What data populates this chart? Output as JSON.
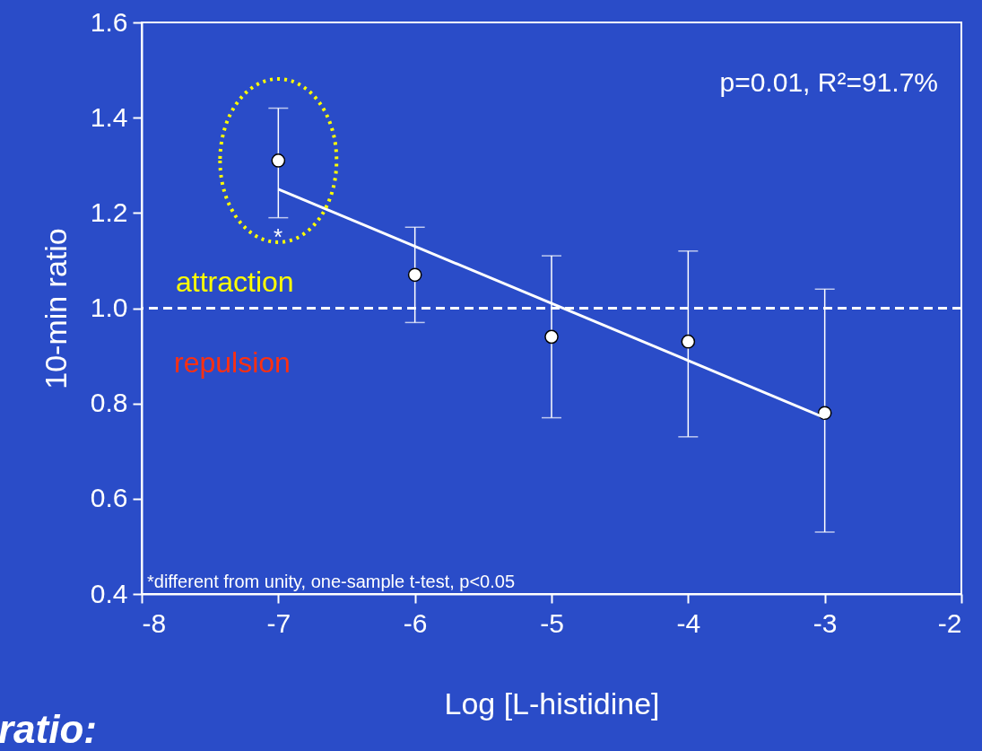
{
  "chart_data": {
    "type": "scatter",
    "xlabel": "Log [L-histidine]",
    "ylabel": "10-min ratio",
    "xlim": [
      -8,
      -2
    ],
    "xticks": [
      -8,
      -7,
      -6,
      -5,
      -4,
      -3,
      -2
    ],
    "ylim": [
      0.4,
      1.6
    ],
    "yticks": [
      {
        "value": 0.4,
        "label": "0.4"
      },
      {
        "value": 0.6,
        "label": "0.6"
      },
      {
        "value": 0.8,
        "label": "0.8"
      },
      {
        "value": 1.0,
        "label": "1.0"
      },
      {
        "value": 1.2,
        "label": "1.2"
      },
      {
        "value": 1.4,
        "label": "1.4"
      },
      {
        "value": 1.6,
        "label": "1.6"
      }
    ],
    "grid": false,
    "legend": false,
    "series": [
      {
        "color": "#ffffff",
        "marker": "circle",
        "x": [
          -7,
          -6,
          -5,
          -4,
          -3
        ],
        "values": [
          1.31,
          1.07,
          0.94,
          0.93,
          0.78
        ],
        "errors": [
          [
            1.19,
            1.42
          ],
          [
            0.97,
            1.17
          ],
          [
            0.77,
            1.11
          ],
          [
            0.73,
            1.12
          ],
          [
            0.53,
            1.04
          ]
        ]
      },
      {
        "type": "line",
        "marker": "none",
        "color": "#ffffff",
        "x": [
          -7,
          -3
        ],
        "values": [
          1.25,
          0.77
        ]
      }
    ],
    "ref_lines": [
      {
        "axis": "y",
        "value": 1.0,
        "label": null,
        "color": "#ffffff",
        "line_style": "dashed"
      }
    ],
    "annotations": [
      "p=0.01, R²=91.7%",
      "*",
      "attraction",
      "repulsion",
      "*different from unity, one-sample t-test, p<0.05",
      "ratio:"
    ]
  }
}
